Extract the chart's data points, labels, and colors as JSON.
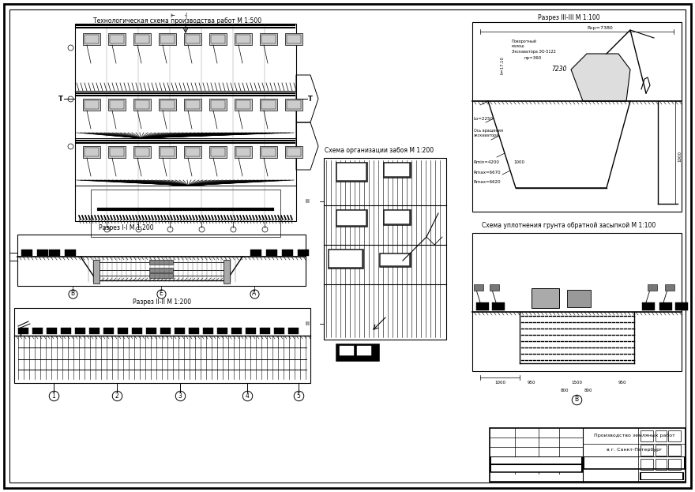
{
  "title": "Производство земляных работ в г. Санкт-Петербург",
  "bg_color": "#ffffff",
  "line_color": "#000000",
  "labels": {
    "tech_schema": "Технологическая схема производства работ М 1:500",
    "razrez_1": "Разрез I-I М 1:200",
    "razrez_2": "Разрез II-II М 1:200",
    "razrez_3": "Разрез III-III М 1:100",
    "schema_zaboi": "Схема организации забоя М 1:200",
    "schema_uplot": "Схема уплотнения грунта обратной засыпкой М 1:100"
  }
}
